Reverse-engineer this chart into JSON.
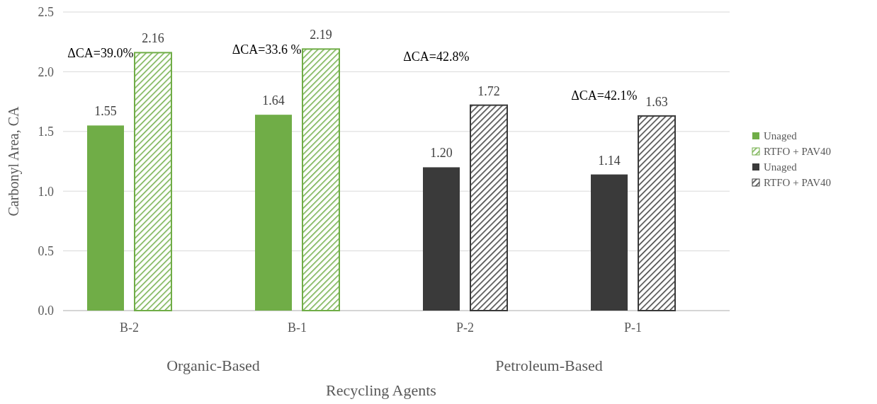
{
  "chart_data": {
    "type": "bar",
    "xlabel": "Recycling Agents",
    "ylabel": "Carbonyl Area, CA",
    "categories": [
      "B-2",
      "B-1",
      "P-2",
      "P-1"
    ],
    "series": [
      {
        "name": "Unaged",
        "color": "#70ad47",
        "values": [
          1.55,
          1.64,
          null,
          null
        ],
        "value_labels": [
          "1.55",
          "1.64",
          null,
          null
        ]
      },
      {
        "name": "RTFO + PAV40",
        "color": "#70ad47",
        "values": [
          2.16,
          2.19,
          null,
          null
        ],
        "value_labels": [
          "2.16",
          "2.19",
          null,
          null
        ]
      },
      {
        "name": "Unaged",
        "color": "#3a3a3a",
        "values": [
          null,
          null,
          1.2,
          1.14
        ],
        "value_labels": [
          null,
          null,
          "1.20",
          "1.14"
        ]
      },
      {
        "name": "RTFO + PAV40",
        "color": "#3a3a3a",
        "values": [
          null,
          null,
          1.72,
          1.63
        ],
        "value_labels": [
          null,
          null,
          "1.72",
          "1.63"
        ]
      }
    ],
    "ylim": [
      0,
      2.5
    ],
    "yticks": [
      {
        "value": 0,
        "label": "0.0"
      },
      {
        "value": 0.5,
        "label": "0.5"
      },
      {
        "value": 1,
        "label": "1.0"
      },
      {
        "value": 1.5,
        "label": "1.5"
      },
      {
        "value": 2,
        "label": "2.0"
      },
      {
        "value": 2.5,
        "label": "2.5"
      }
    ],
    "grid": "y",
    "legend": "right",
    "annotations": [
      "ΔCA=39.0%",
      "ΔCA=33.6 %",
      "ΔCA=42.8%",
      "ΔCA=42.1%",
      "Organic-Based",
      "Petroleum-Based"
    ]
  }
}
